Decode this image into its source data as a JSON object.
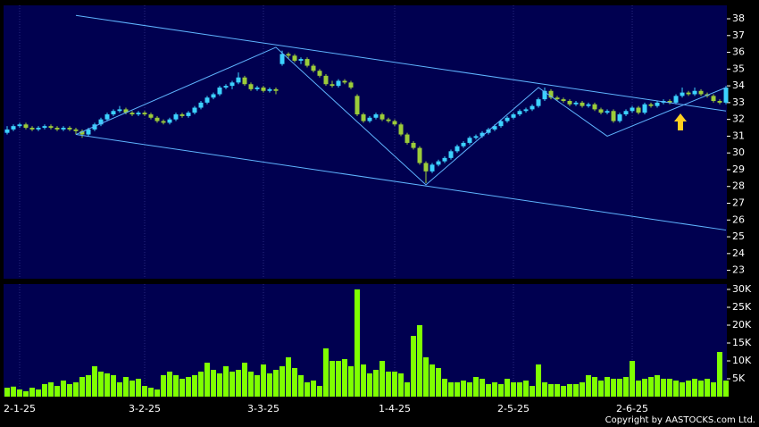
{
  "chart_data": {
    "type": "candlestick",
    "copyright": "Copyright by AASTOCKS.com Ltd.",
    "ohlc": [
      [
        31.2,
        31.6,
        31.1,
        31.4
      ],
      [
        31.4,
        31.7,
        31.3,
        31.6
      ],
      [
        31.6,
        31.8,
        31.5,
        31.7
      ],
      [
        31.7,
        31.8,
        31.4,
        31.5
      ],
      [
        31.5,
        31.6,
        31.3,
        31.4
      ],
      [
        31.4,
        31.6,
        31.3,
        31.5
      ],
      [
        31.5,
        31.7,
        31.4,
        31.6
      ],
      [
        31.6,
        31.7,
        31.4,
        31.5
      ],
      [
        31.5,
        31.6,
        31.3,
        31.4
      ],
      [
        31.4,
        31.6,
        31.3,
        31.5
      ],
      [
        31.5,
        31.6,
        31.3,
        31.4
      ],
      [
        31.4,
        31.5,
        31.1,
        31.3
      ],
      [
        31.3,
        31.4,
        30.9,
        31.1
      ],
      [
        31.1,
        31.5,
        31.0,
        31.4
      ],
      [
        31.4,
        31.8,
        31.3,
        31.7
      ],
      [
        31.7,
        32.1,
        31.6,
        32.0
      ],
      [
        32.0,
        32.4,
        31.9,
        32.3
      ],
      [
        32.3,
        32.6,
        32.2,
        32.5
      ],
      [
        32.5,
        32.8,
        32.4,
        32.6
      ],
      [
        32.6,
        32.7,
        32.3,
        32.4
      ],
      [
        32.4,
        32.5,
        32.2,
        32.3
      ],
      [
        32.3,
        32.5,
        32.2,
        32.4
      ],
      [
        32.4,
        32.5,
        32.2,
        32.3
      ],
      [
        32.3,
        32.4,
        32.0,
        32.1
      ],
      [
        32.1,
        32.2,
        31.8,
        31.9
      ],
      [
        31.9,
        32.0,
        31.7,
        31.8
      ],
      [
        31.8,
        32.1,
        31.7,
        32.0
      ],
      [
        32.0,
        32.4,
        31.9,
        32.3
      ],
      [
        32.3,
        32.4,
        32.1,
        32.2
      ],
      [
        32.2,
        32.5,
        32.1,
        32.4
      ],
      [
        32.4,
        32.8,
        32.3,
        32.7
      ],
      [
        32.7,
        33.1,
        32.6,
        33.0
      ],
      [
        33.0,
        33.4,
        32.9,
        33.3
      ],
      [
        33.3,
        33.6,
        33.2,
        33.5
      ],
      [
        33.5,
        34.0,
        33.4,
        33.9
      ],
      [
        33.9,
        34.1,
        33.8,
        34.0
      ],
      [
        34.0,
        34.3,
        33.8,
        34.2
      ],
      [
        34.2,
        34.8,
        34.1,
        34.5
      ],
      [
        34.5,
        34.6,
        34.0,
        34.1
      ],
      [
        34.1,
        34.2,
        33.7,
        33.8
      ],
      [
        33.8,
        34.0,
        33.7,
        33.9
      ],
      [
        33.9,
        34.0,
        33.6,
        33.7
      ],
      [
        33.7,
        33.9,
        33.6,
        33.8
      ],
      [
        33.8,
        33.9,
        33.5,
        33.7
      ],
      [
        35.3,
        36.1,
        35.2,
        35.9
      ],
      [
        35.9,
        36.0,
        35.6,
        35.8
      ],
      [
        35.8,
        35.9,
        35.4,
        35.5
      ],
      [
        35.5,
        35.7,
        35.3,
        35.6
      ],
      [
        35.6,
        35.7,
        35.1,
        35.2
      ],
      [
        35.2,
        35.3,
        34.8,
        34.9
      ],
      [
        34.9,
        35.0,
        34.5,
        34.6
      ],
      [
        34.6,
        34.7,
        34.0,
        34.1
      ],
      [
        34.1,
        34.3,
        33.9,
        34.0
      ],
      [
        34.0,
        34.4,
        33.9,
        34.3
      ],
      [
        34.3,
        34.4,
        34.1,
        34.2
      ],
      [
        34.2,
        34.3,
        33.8,
        33.9
      ],
      [
        33.4,
        33.5,
        32.2,
        32.3
      ],
      [
        32.3,
        32.4,
        31.8,
        31.9
      ],
      [
        31.9,
        32.2,
        31.8,
        32.1
      ],
      [
        32.1,
        32.4,
        32.0,
        32.3
      ],
      [
        32.3,
        32.4,
        31.9,
        32.0
      ],
      [
        32.0,
        32.1,
        31.8,
        31.9
      ],
      [
        31.9,
        32.0,
        31.6,
        31.7
      ],
      [
        31.7,
        31.8,
        31.0,
        31.1
      ],
      [
        31.1,
        31.2,
        30.5,
        30.6
      ],
      [
        30.6,
        30.7,
        30.2,
        30.3
      ],
      [
        30.3,
        30.4,
        29.3,
        29.4
      ],
      [
        29.4,
        29.5,
        28.2,
        28.9
      ],
      [
        28.9,
        29.4,
        28.8,
        29.3
      ],
      [
        29.3,
        29.6,
        29.2,
        29.5
      ],
      [
        29.5,
        29.8,
        29.4,
        29.7
      ],
      [
        29.7,
        30.2,
        29.6,
        30.1
      ],
      [
        30.1,
        30.5,
        30.0,
        30.4
      ],
      [
        30.4,
        30.7,
        30.3,
        30.6
      ],
      [
        30.6,
        31.0,
        30.5,
        30.9
      ],
      [
        30.9,
        31.1,
        30.8,
        31.0
      ],
      [
        31.0,
        31.3,
        30.9,
        31.2
      ],
      [
        31.2,
        31.5,
        31.1,
        31.4
      ],
      [
        31.4,
        31.7,
        31.3,
        31.6
      ],
      [
        31.6,
        32.0,
        31.5,
        31.9
      ],
      [
        31.9,
        32.2,
        31.8,
        32.1
      ],
      [
        32.1,
        32.4,
        32.0,
        32.3
      ],
      [
        32.3,
        32.6,
        32.2,
        32.5
      ],
      [
        32.5,
        32.7,
        32.4,
        32.6
      ],
      [
        32.6,
        32.9,
        32.5,
        32.8
      ],
      [
        32.8,
        33.3,
        32.7,
        33.2
      ],
      [
        33.2,
        33.9,
        33.1,
        33.7
      ],
      [
        33.7,
        33.8,
        33.2,
        33.3
      ],
      [
        33.3,
        33.4,
        33.1,
        33.2
      ],
      [
        33.2,
        33.3,
        33.0,
        33.1
      ],
      [
        33.1,
        33.2,
        32.8,
        32.9
      ],
      [
        32.9,
        33.1,
        32.8,
        33.0
      ],
      [
        33.0,
        33.1,
        32.7,
        32.8
      ],
      [
        32.8,
        33.0,
        32.7,
        32.9
      ],
      [
        32.9,
        33.0,
        32.5,
        32.6
      ],
      [
        32.6,
        32.7,
        32.3,
        32.4
      ],
      [
        32.4,
        32.6,
        32.3,
        32.5
      ],
      [
        32.5,
        32.6,
        31.8,
        31.9
      ],
      [
        31.9,
        32.4,
        31.8,
        32.3
      ],
      [
        32.3,
        32.6,
        32.2,
        32.5
      ],
      [
        32.5,
        32.8,
        32.4,
        32.7
      ],
      [
        32.7,
        32.8,
        32.3,
        32.4
      ],
      [
        32.4,
        33.0,
        32.3,
        32.9
      ],
      [
        32.9,
        33.0,
        32.7,
        32.8
      ],
      [
        32.8,
        33.1,
        32.7,
        33.0
      ],
      [
        33.0,
        33.2,
        32.9,
        33.1
      ],
      [
        33.1,
        33.2,
        32.9,
        33.0
      ],
      [
        33.0,
        33.5,
        32.9,
        33.4
      ],
      [
        33.4,
        33.9,
        33.3,
        33.6
      ],
      [
        33.6,
        33.7,
        33.4,
        33.5
      ],
      [
        33.5,
        33.9,
        33.4,
        33.7
      ],
      [
        33.7,
        33.8,
        33.4,
        33.5
      ],
      [
        33.5,
        33.6,
        33.3,
        33.4
      ],
      [
        33.4,
        33.5,
        33.0,
        33.1
      ],
      [
        33.1,
        33.2,
        32.9,
        33.0
      ],
      [
        33.0,
        34.0,
        32.9,
        33.9
      ]
    ],
    "volume": [
      2500,
      2800,
      2000,
      1500,
      2500,
      2000,
      3500,
      4000,
      3000,
      4500,
      3500,
      4000,
      5500,
      6000,
      8500,
      7000,
      6500,
      6000,
      4000,
      5500,
      4500,
      5000,
      3000,
      2500,
      2000,
      6000,
      7000,
      6000,
      5000,
      5500,
      6000,
      7000,
      9500,
      7500,
      6500,
      8500,
      7000,
      7500,
      9500,
      7000,
      6000,
      9000,
      6500,
      7500,
      8500,
      11000,
      8000,
      6000,
      4000,
      4500,
      3000,
      13500,
      10000,
      10000,
      10500,
      8500,
      30000,
      9000,
      6500,
      7500,
      10000,
      7000,
      7000,
      6500,
      4000,
      17000,
      20000,
      11000,
      9000,
      8000,
      5000,
      4000,
      4000,
      4500,
      4000,
      5500,
      5000,
      3500,
      4000,
      3500,
      5000,
      4000,
      4000,
      4500,
      3000,
      9000,
      4000,
      3500,
      3500,
      3000,
      3500,
      3500,
      4000,
      6000,
      5500,
      4500,
      5500,
      5000,
      5000,
      5500,
      10000,
      4500,
      5000,
      5500,
      6000,
      5000,
      5000,
      4500,
      4000,
      4500,
      5000,
      4500,
      5000,
      4000,
      12500,
      4500
    ],
    "trendlines": [
      [
        [
          11,
          38.2
        ],
        [
          115,
          32.5
        ]
      ],
      [
        [
          11,
          31.1
        ],
        [
          115,
          25.4
        ]
      ],
      [
        [
          11,
          31.1
        ],
        [
          43,
          36.3
        ],
        [
          67,
          28.1
        ],
        [
          85,
          33.9
        ],
        [
          96,
          31.0
        ],
        [
          115,
          33.9
        ]
      ]
    ],
    "xlim": [
      -0.57,
      115.14
    ],
    "xticks": [
      {
        "value": 2,
        "label": "2-1-25"
      },
      {
        "value": 22,
        "label": "3-2-25"
      },
      {
        "value": 41,
        "label": "3-3-25"
      },
      {
        "value": 62,
        "label": "1-4-25"
      },
      {
        "value": 81,
        "label": "2-5-25"
      },
      {
        "value": 100,
        "label": "2-6-25"
      }
    ],
    "ylim": [
      22.5,
      38.8
    ],
    "yticks": [
      23,
      24,
      25,
      26,
      27,
      28,
      29,
      30,
      31,
      32,
      33,
      34,
      35,
      36,
      37,
      38
    ],
    "y2lim": [
      0,
      31500
    ],
    "y2ticks": [
      {
        "value": 5000,
        "label": "5K"
      },
      {
        "value": 10000,
        "label": "10K"
      },
      {
        "value": 15000,
        "label": "15K"
      },
      {
        "value": 20000,
        "label": "20K"
      },
      {
        "value": 25000,
        "label": "25K"
      },
      {
        "value": 30000,
        "label": "30K"
      }
    ],
    "up_color": "#3cd2ff",
    "down_color": "#9ccc3a",
    "volume_color": "#7fff00",
    "line_color": "#5fb4ff",
    "panel_color": "#000050"
  }
}
